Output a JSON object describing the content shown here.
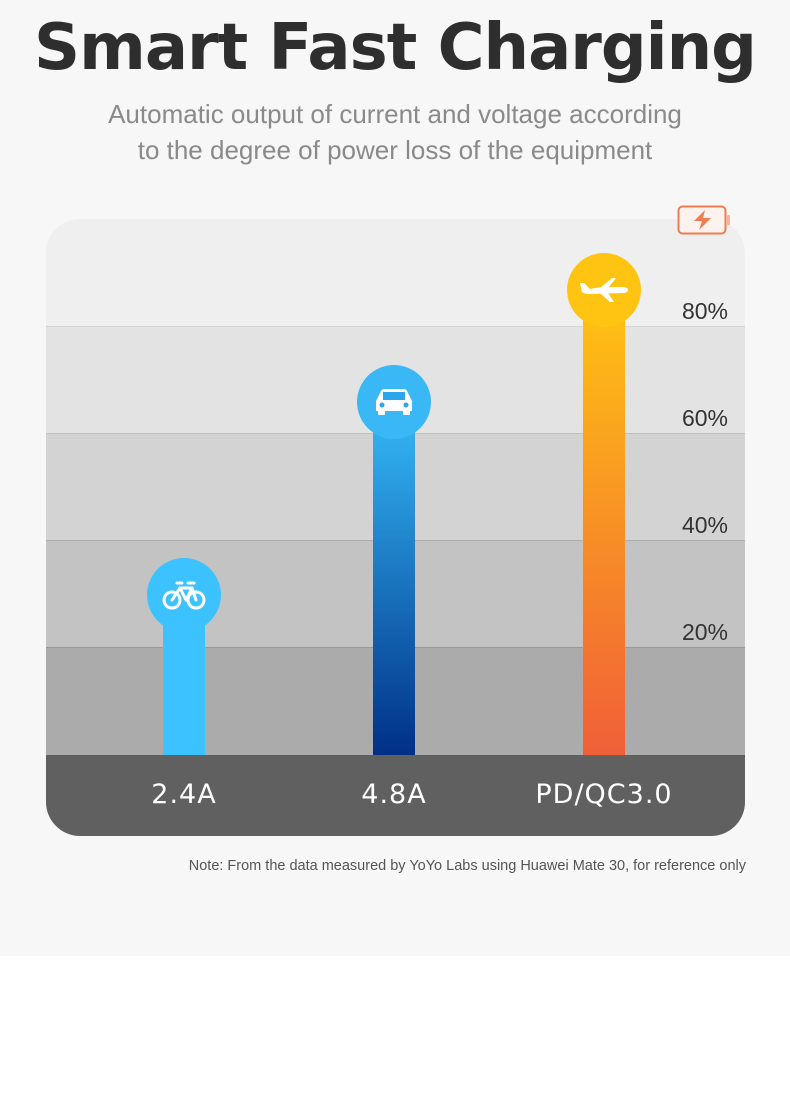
{
  "header": {
    "title": "Smart Fast Charging",
    "subtitle_line1": "Automatic output of current and voltage according",
    "subtitle_line2": "to the degree of power loss of the equipment"
  },
  "note": "Note: From the data measured by YoYo Labs using Huawei Mate 30, for reference only",
  "colors": {
    "page_background": "#f7f7f7",
    "category_bar": "#606060",
    "bar_2_4A": [
      "#3cc3ff",
      "#3cc3ff"
    ],
    "bar_4_8A": [
      "#36bcf8",
      "#003087"
    ],
    "bar_pd": [
      "#ffc412",
      "#f05f38"
    ],
    "battery_icon": "#f07c50"
  },
  "chart_data": {
    "type": "bar",
    "categories": [
      "2.4A",
      "4.8A",
      "PD/QC3.0"
    ],
    "values": [
      30,
      66,
      87
    ],
    "ylim": [
      0,
      100
    ],
    "yticks": [
      20,
      40,
      60,
      80
    ],
    "ytick_labels": [
      "20%",
      "40%",
      "60%",
      "80%"
    ],
    "icons": [
      "bicycle-icon",
      "car-icon",
      "airplane-icon"
    ],
    "legend_icon": "battery-charging-icon",
    "grid": true
  }
}
